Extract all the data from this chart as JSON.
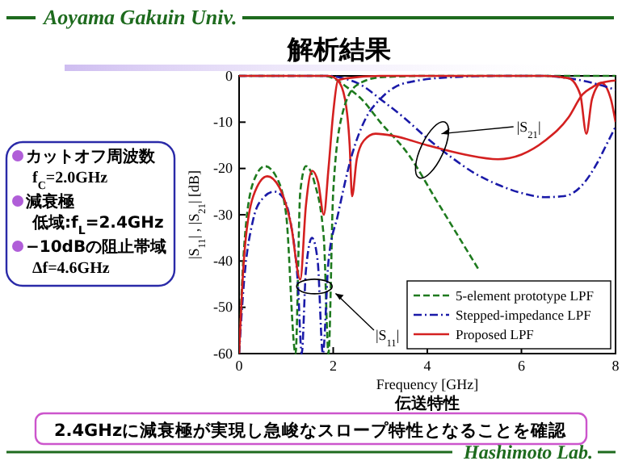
{
  "chart_data": {
    "type": "line",
    "title": "解析結果",
    "xlabel": "Frequency [GHz]",
    "ylabel": "|S$_{11}$| , |S$_{21}$| [dB]",
    "xlim": [
      0,
      8
    ],
    "xticks": [
      0,
      2,
      4,
      6,
      8
    ],
    "ylim": [
      -60,
      0
    ],
    "yticks": [
      -60,
      -50,
      -40,
      -30,
      -20,
      -10,
      0
    ],
    "grid": false,
    "legend": "bottom right",
    "marker": "none",
    "series": [
      {
        "name": "5-element prototype LPF",
        "color": "#1e7a1e",
        "line_style": "dashed",
        "x": [
          0,
          1.8,
          2.0,
          2.3,
          2.6,
          3.0,
          3.6,
          4.2,
          5.1
        ],
        "values": [
          0,
          0,
          -0.5,
          -2.5,
          -5,
          -10,
          -17,
          -27,
          -42
        ]
      },
      {
        "name": "Stepped-impedance LPF",
        "color": "#1a1aa8",
        "line_style": "dotted",
        "x": [
          0,
          1.9,
          2.2,
          2.6,
          3.0,
          3.5,
          4.0,
          4.5,
          5.0,
          5.5,
          6.0,
          6.5,
          6.9,
          7.3,
          7.6,
          7.8,
          8.0
        ],
        "values": [
          0,
          0,
          -0.5,
          -2,
          -5,
          -9,
          -13.5,
          -17.5,
          -21,
          -23.5,
          -25.3,
          -26.2,
          -26,
          -23.5,
          -19,
          -15,
          -11
        ]
      },
      {
        "name": "Proposed LPF",
        "color": "#d42020",
        "line_style": "solid",
        "x": [
          0,
          1.9,
          2.1,
          2.25,
          2.35,
          2.4,
          2.5,
          2.65,
          2.9,
          3.3,
          4.0,
          4.8,
          5.5,
          6.0,
          6.5,
          7.0,
          7.3,
          7.5,
          7.7,
          7.9,
          8.0
        ],
        "values": [
          0,
          0,
          -1,
          -5,
          -15,
          -26,
          -18,
          -14,
          -12.5,
          -13,
          -15,
          -17,
          -18,
          -17,
          -14,
          -9,
          -4,
          -2.5,
          -1.5,
          -5,
          -10
        ]
      },
      {
        "color": "#1e7a1e",
        "line_style": "dashed",
        "x": [
          0,
          0.1,
          0.3,
          0.55,
          0.8,
          1.0,
          1.2,
          1.3,
          1.42,
          1.6,
          1.8,
          1.9,
          2.0,
          2.2,
          2.5,
          3.0,
          4.0,
          8.0
        ],
        "values": [
          -60,
          -38,
          -23,
          -19.5,
          -22,
          -30,
          -60,
          -25,
          -19.5,
          -23,
          -35,
          -60,
          -25,
          -8,
          -2,
          -0.3,
          0,
          0
        ]
      },
      {
        "color": "#1a1aa8",
        "line_style": "dotted",
        "x": [
          0,
          0.1,
          0.3,
          0.5,
          0.75,
          0.95,
          1.1,
          1.25,
          1.33,
          1.42,
          1.55,
          1.67,
          1.78,
          1.9,
          2.1,
          2.4,
          2.7,
          3.0,
          3.3,
          3.8,
          4.5,
          5.5,
          6.5,
          7.0,
          7.5,
          8.0
        ],
        "values": [
          -60,
          -45,
          -31,
          -26.5,
          -25,
          -26.5,
          -32,
          -45,
          -60,
          -42,
          -35,
          -40,
          -60,
          -40,
          -30,
          -17,
          -9,
          -5,
          -2.5,
          -1,
          -0.3,
          0,
          0,
          -0.5,
          -1.5,
          -3
        ]
      },
      {
        "color": "#d42020",
        "line_style": "solid",
        "x": [
          0,
          0.1,
          0.3,
          0.6,
          0.85,
          1.1,
          1.3,
          1.42,
          1.55,
          1.68,
          1.8,
          1.9,
          2.0,
          2.1,
          2.3,
          3.0,
          6.5,
          7.0,
          7.25,
          7.38,
          7.5,
          7.7,
          8.0
        ],
        "values": [
          -60,
          -40,
          -26,
          -21.7,
          -24,
          -32,
          -44,
          -28,
          -20.5,
          -23,
          -30,
          -20,
          -8,
          -1,
          -0.5,
          0,
          0,
          -0.5,
          -4,
          -12.5,
          -5,
          -1.5,
          -1
        ]
      }
    ],
    "annotations": [
      "|S$_{21}$|",
      {
        "text": "|S$_{11}$|",
        "x": 2.05,
        "y": -47
      },
      "伝送特性",
      "Aoyama Gakuin Univ.",
      "カットオフ周波数",
      "f$_{C}$=2.0GHz",
      "減衰極",
      "低域:f$_{L}$=2.4GHz",
      "−10dBの阻止帯域",
      "Δf=4.6GHz",
      "2.4GHzに減衰極が実現し急峻なスロープ特性となることを確認",
      "Hashimoto Lab."
    ]
  }
}
